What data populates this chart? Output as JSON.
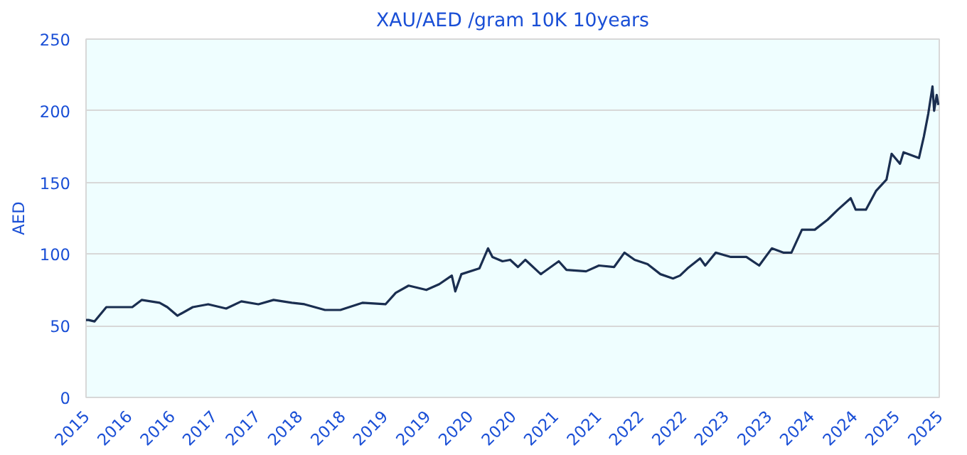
{
  "chart_data": {
    "type": "line",
    "title": "XAU/AED /gram 10K 10years",
    "ylabel": "AED",
    "x": [
      "2015-09-13",
      "2015-09-24",
      "2015-10-19",
      "2015-12-09",
      "2016-03-29",
      "2016-05-08",
      "2016-07-24",
      "2016-08-26",
      "2016-10-08",
      "2016-12-13",
      "2017-02-17",
      "2017-05-05",
      "2017-07-09",
      "2017-09-20",
      "2017-11-24",
      "2018-02-10",
      "2018-04-05",
      "2018-07-02",
      "2018-09-06",
      "2018-12-09",
      "2019-03-18",
      "2019-05-01",
      "2019-06-25",
      "2019-09-09",
      "2019-11-03",
      "2019-12-27",
      "2020-01-11",
      "2020-02-06",
      "2020-04-23",
      "2020-05-30",
      "2020-06-18",
      "2020-07-31",
      "2020-09-02",
      "2020-10-05",
      "2020-11-06",
      "2021-01-11",
      "2021-03-29",
      "2021-05-01",
      "2021-07-24",
      "2021-09-17",
      "2021-11-21",
      "2022-01-04",
      "2022-02-17",
      "2022-04-13",
      "2022-06-07",
      "2022-07-31",
      "2022-08-30",
      "2022-10-01",
      "2022-11-24",
      "2022-12-16",
      "2023-01-30",
      "2023-04-05",
      "2023-06-10",
      "2023-08-04",
      "2023-09-27",
      "2023-11-17",
      "2023-12-20",
      "2024-02-03",
      "2024-03-29",
      "2024-05-23",
      "2024-07-06",
      "2024-08-30",
      "2024-09-20",
      "2024-11-03",
      "2024-12-16",
      "2025-01-30",
      "2025-02-21",
      "2025-03-29",
      "2025-04-13",
      "2025-06-18",
      "2025-07-09",
      "2025-07-28",
      "2025-08-15",
      "2025-08-22",
      "2025-09-02",
      "2025-09-09"
    ],
    "series": [
      {
        "color": "#1a2e50",
        "values": [
          54,
          54,
          53,
          63,
          63,
          68,
          66,
          63,
          57,
          63,
          65,
          62,
          67,
          65,
          68,
          66,
          65,
          61,
          61,
          66,
          65,
          73,
          78,
          75,
          79,
          85,
          74,
          86,
          90,
          104,
          98,
          95,
          96,
          91,
          96,
          86,
          95,
          89,
          88,
          92,
          91,
          101,
          96,
          93,
          86,
          83,
          85,
          90,
          97,
          92,
          101,
          98,
          98,
          92,
          104,
          101,
          101,
          117,
          117,
          124,
          131,
          139,
          131,
          131,
          144,
          152,
          170,
          163,
          171,
          167,
          182,
          198,
          217,
          200,
          211,
          204
        ]
      }
    ],
    "xlim": [
      "2015-09-13",
      "2025-09-13"
    ],
    "xticks": [
      {
        "value": "2015-09-13",
        "label": "2015"
      },
      {
        "value": "2016-03-13",
        "label": "2016"
      },
      {
        "value": "2016-09-13",
        "label": "2016"
      },
      {
        "value": "2017-03-13",
        "label": "2017"
      },
      {
        "value": "2017-09-13",
        "label": "2017"
      },
      {
        "value": "2018-03-13",
        "label": "2018"
      },
      {
        "value": "2018-09-13",
        "label": "2018"
      },
      {
        "value": "2019-03-13",
        "label": "2019"
      },
      {
        "value": "2019-09-13",
        "label": "2019"
      },
      {
        "value": "2020-03-13",
        "label": "2020"
      },
      {
        "value": "2020-09-13",
        "label": "2020"
      },
      {
        "value": "2021-03-13",
        "label": "2021"
      },
      {
        "value": "2021-09-13",
        "label": "2021"
      },
      {
        "value": "2022-03-13",
        "label": "2022"
      },
      {
        "value": "2022-09-13",
        "label": "2022"
      },
      {
        "value": "2023-03-13",
        "label": "2023"
      },
      {
        "value": "2023-09-13",
        "label": "2023"
      },
      {
        "value": "2024-03-13",
        "label": "2024"
      },
      {
        "value": "2024-09-13",
        "label": "2024"
      },
      {
        "value": "2025-03-13",
        "label": "2025"
      },
      {
        "value": "2025-09-13",
        "label": "2025"
      }
    ],
    "ylim": [
      0,
      250
    ],
    "yticks": [
      0,
      50,
      100,
      150,
      200,
      250
    ],
    "grid": "y",
    "marker": "none",
    "line_style": "solid"
  }
}
